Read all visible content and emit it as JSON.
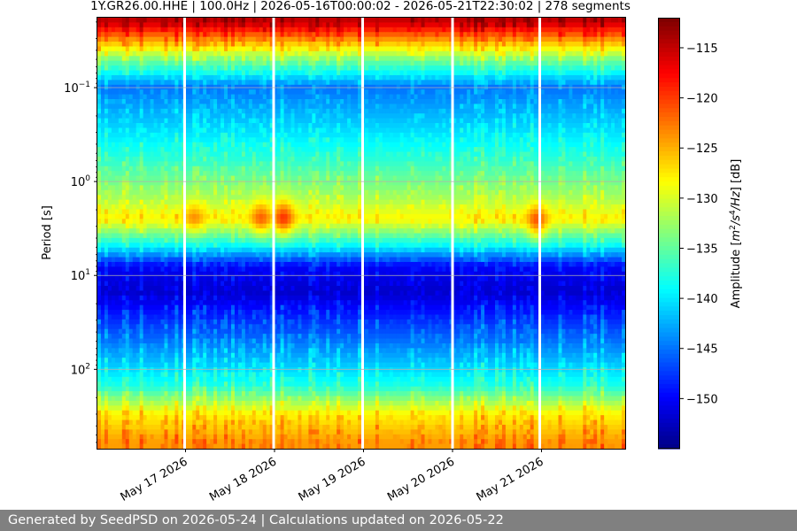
{
  "chart_data": {
    "type": "heatmap",
    "title": "1Y.GR26.00.HHE | 100.0Hz | 2026-05-16T00:00:02 - 2026-05-21T22:30:02 | 278 segments",
    "xlabel": "",
    "ylabel": "Period [s]",
    "colorbar_label": "Amplitude [m²/s⁴/Hz] [dB]",
    "colorbar_label_parts": {
      "pre": "Amplitude [",
      "m": "m",
      "two": "2",
      "mid": "/s",
      "four": "4",
      "post": "/Hz",
      "end": "] [dB]"
    },
    "x_tick_labels": [
      "May 17 2026",
      "May 18 2026",
      "May 19 2026",
      "May 20 2026",
      "May 21 2026"
    ],
    "x_ticks_days": [
      1,
      2,
      3,
      4,
      5
    ],
    "x_range_days": [
      0.01,
      5.94
    ],
    "x_start": "2026-05-16T00:00:02",
    "x_end": "2026-05-21T22:30:02",
    "y_scale": "log",
    "y_inverted": true,
    "y_range": [
      0.018,
      700
    ],
    "y_ticks": [
      {
        "value": 0.1,
        "base": "10",
        "exp": "−1"
      },
      {
        "value": 1,
        "base": "10",
        "exp": "0"
      },
      {
        "value": 10,
        "base": "10",
        "exp": "1"
      },
      {
        "value": 100,
        "base": "10",
        "exp": "2"
      }
    ],
    "grid": true,
    "colorbar_range": [
      -155,
      -112
    ],
    "colorbar_ticks": [
      "−115",
      "−120",
      "−125",
      "−130",
      "−135",
      "−140",
      "−145",
      "−150"
    ],
    "colorbar_tick_values": [
      -115,
      -120,
      -125,
      -130,
      -135,
      -140,
      -145,
      -150
    ],
    "colormap": "jet",
    "segments": 278,
    "data_gaps_days": [
      0.99,
      1.99,
      2.99,
      4.0,
      4.98
    ],
    "typical_profile_db": [
      {
        "period": 0.02,
        "db": -115
      },
      {
        "period": 0.05,
        "db": -134
      },
      {
        "period": 0.1,
        "db": -145
      },
      {
        "period": 0.5,
        "db": -138
      },
      {
        "period": 1.5,
        "db": -132
      },
      {
        "period": 2.5,
        "db": -128
      },
      {
        "period": 5,
        "db": -140
      },
      {
        "period": 8,
        "db": -150
      },
      {
        "period": 15,
        "db": -152
      },
      {
        "period": 50,
        "db": -145
      },
      {
        "period": 150,
        "db": -138
      },
      {
        "period": 300,
        "db": -128
      },
      {
        "period": 600,
        "db": -124
      }
    ],
    "microseism_peaks": [
      {
        "day": 1.1,
        "period": 2.5,
        "db": -123
      },
      {
        "day": 1.85,
        "period": 2.5,
        "db": -121
      },
      {
        "day": 2.1,
        "period": 2.5,
        "db": -119
      },
      {
        "day": 4.95,
        "period": 2.8,
        "db": -122
      }
    ]
  },
  "footer": {
    "text": "Generated by SeedPSD on 2026-05-24 | Calculations updated on 2026-05-22"
  }
}
